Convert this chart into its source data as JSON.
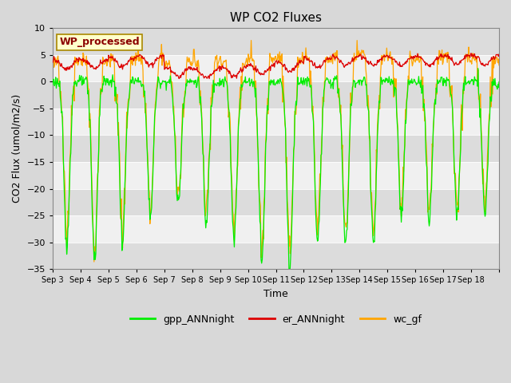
{
  "title": "WP CO2 Fluxes",
  "xlabel": "Time",
  "ylabel_actual": "CO2 Flux (umol/m2/s)",
  "ylim": [
    -35,
    10
  ],
  "yticks": [
    -35,
    -30,
    -25,
    -20,
    -15,
    -10,
    -5,
    0,
    5,
    10
  ],
  "n_days": 16,
  "n_per_day": 48,
  "start_day": 3,
  "xtick_labels": [
    "Sep 3",
    "Sep 4",
    "Sep 5",
    "Sep 6",
    "Sep 7",
    "Sep 8",
    "Sep 9",
    "Sep 10",
    "Sep 11",
    "Sep 12",
    "Sep 13",
    "Sep 14",
    "Sep 15",
    "Sep 16",
    "Sep 17",
    "Sep 18"
  ],
  "colors": {
    "gpp": "#00EE00",
    "er": "#DD0000",
    "wc": "#FFA500"
  },
  "legend_labels": [
    "gpp_ANNnight",
    "er_ANNnight",
    "wc_gf"
  ],
  "annotation_text": "WP_processed",
  "annotation_color": "#8B0000",
  "annotation_bg": "#FFFFCC",
  "bg_color": "#D8D8D8",
  "band_light": "#DCDCDC",
  "band_white": "#F0F0F0",
  "linewidth": 0.9,
  "fig_width": 6.4,
  "fig_height": 4.8,
  "dpi": 100
}
